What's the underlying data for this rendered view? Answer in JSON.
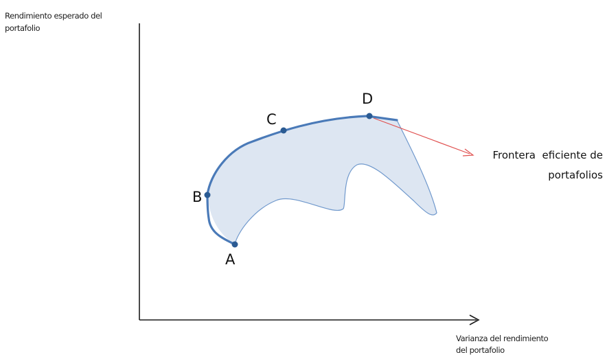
{
  "diagram": {
    "y_axis_title": [
      "Rendimiento esperado del",
      "portafolio"
    ],
    "x_axis_title": [
      "Varianza del rendimiento",
      "del portafolio"
    ],
    "points": [
      {
        "label": "A"
      },
      {
        "label": "B"
      },
      {
        "label": "C"
      },
      {
        "label": "D"
      }
    ],
    "callout": [
      "Frontera  eficiente de",
      "portafolios"
    ],
    "colors": {
      "axis": "#1a1a1a",
      "frontier": "#4a7ab8",
      "region_fill": "#dde6f2",
      "region_edge": "#6f98cc",
      "point": "#2b5b93",
      "arrow": "#e0504f"
    }
  }
}
